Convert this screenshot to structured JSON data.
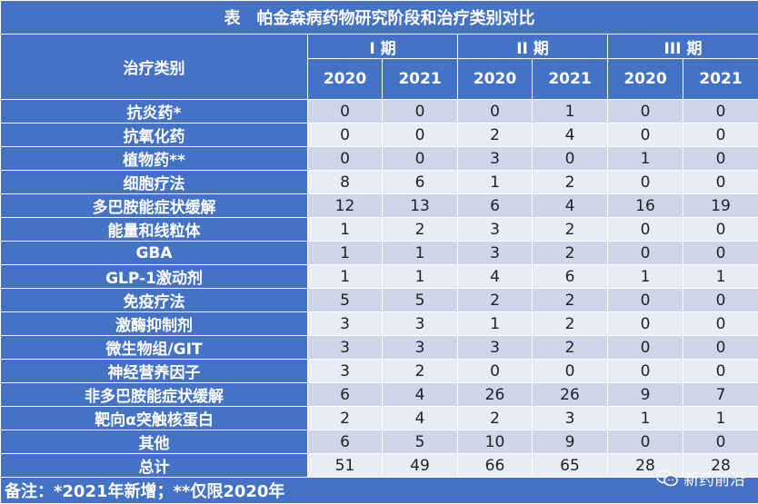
{
  "title": "表　帕金森病药物研究阶段和治疗类别对比",
  "header": {
    "category_label": "治疗类别",
    "phases": [
      "I 期",
      "II 期",
      "III 期"
    ],
    "years": [
      "2020",
      "2021",
      "2020",
      "2021",
      "2020",
      "2021"
    ]
  },
  "rows": [
    {
      "category": "抗炎药*",
      "values": [
        "0",
        "0",
        "0",
        "1",
        "0",
        "0"
      ]
    },
    {
      "category": "抗氧化药",
      "values": [
        "0",
        "0",
        "2",
        "4",
        "0",
        "0"
      ]
    },
    {
      "category": "植物药**",
      "values": [
        "0",
        "0",
        "3",
        "0",
        "1",
        "0"
      ]
    },
    {
      "category": "细胞疗法",
      "values": [
        "8",
        "6",
        "1",
        "2",
        "0",
        "0"
      ]
    },
    {
      "category": "多巴胺能症状缓解",
      "values": [
        "12",
        "13",
        "6",
        "4",
        "16",
        "19"
      ]
    },
    {
      "category": "能量和线粒体",
      "values": [
        "1",
        "2",
        "3",
        "2",
        "0",
        "0"
      ]
    },
    {
      "category": "GBA",
      "values": [
        "1",
        "1",
        "3",
        "2",
        "0",
        "0"
      ]
    },
    {
      "category": "GLP-1激动剂",
      "values": [
        "1",
        "1",
        "4",
        "6",
        "1",
        "1"
      ]
    },
    {
      "category": "免疫疗法",
      "values": [
        "5",
        "5",
        "2",
        "2",
        "0",
        "0"
      ]
    },
    {
      "category": "激酶抑制剂",
      "values": [
        "3",
        "3",
        "1",
        "2",
        "0",
        "0"
      ]
    },
    {
      "category": "微生物组/GIT",
      "values": [
        "3",
        "3",
        "3",
        "2",
        "0",
        "0"
      ]
    },
    {
      "category": "神经营养因子",
      "values": [
        "3",
        "2",
        "0",
        "0",
        "0",
        "0"
      ]
    },
    {
      "category": "非多巴胺能症状缓解",
      "values": [
        "6",
        "4",
        "26",
        "26",
        "9",
        "7"
      ]
    },
    {
      "category": "靶向α突触核蛋白",
      "values": [
        "2",
        "4",
        "2",
        "3",
        "1",
        "1"
      ]
    },
    {
      "category": "其他",
      "values": [
        "6",
        "5",
        "10",
        "9",
        "0",
        "0"
      ]
    },
    {
      "category": "总计",
      "values": [
        "51",
        "49",
        "66",
        "65",
        "28",
        "28"
      ]
    }
  ],
  "footnote": "备注：*2021年新增；**仅限2020年",
  "watermark": {
    "text": "新药前沿",
    "icon": "wechat-icon"
  },
  "colors": {
    "header_blue": "#4472c4",
    "row_dark": "#cfd6ea",
    "row_light": "#e9ecf6"
  }
}
